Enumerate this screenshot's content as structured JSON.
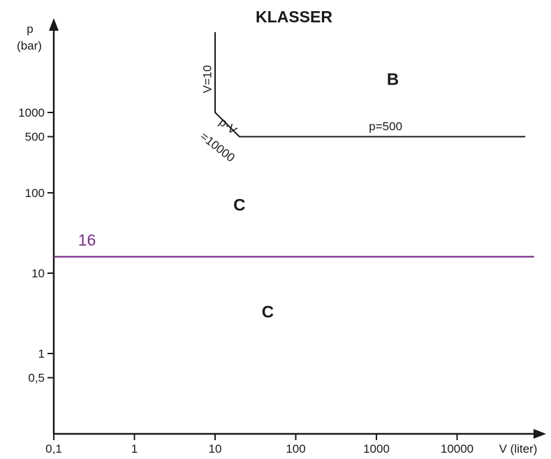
{
  "chart_data": {
    "type": "line",
    "title": "KLASSER",
    "xlabel": "V (liter)",
    "ylabel": [
      "p",
      "(bar)"
    ],
    "xscale": "log",
    "yscale": "log",
    "xlim": [
      0.1,
      90000
    ],
    "ylim": [
      0.1,
      40000
    ],
    "grid": false,
    "x_ticks": [
      {
        "value": 0.1,
        "label": "0,1"
      },
      {
        "value": 1,
        "label": "1"
      },
      {
        "value": 10,
        "label": "10"
      },
      {
        "value": 100,
        "label": "100"
      },
      {
        "value": 1000,
        "label": "1000"
      },
      {
        "value": 10000,
        "label": "10000"
      }
    ],
    "y_ticks": [
      {
        "value": 0.5,
        "label": "0,5"
      },
      {
        "value": 1,
        "label": "1"
      },
      {
        "value": 10,
        "label": "10"
      },
      {
        "value": 100,
        "label": "100"
      },
      {
        "value": 500,
        "label": "500"
      },
      {
        "value": 1000,
        "label": "1000"
      }
    ],
    "series": [
      {
        "color": "#1a1a1a",
        "points": [
          [
            10,
            10000
          ],
          [
            10,
            1000
          ],
          [
            20,
            500
          ],
          [
            70000,
            500
          ]
        ]
      },
      {
        "color": "#7b2d8e",
        "points": [
          [
            0.1,
            16
          ],
          [
            90000,
            16
          ]
        ]
      }
    ],
    "annotations": [
      {
        "text": "V=10",
        "x": 9,
        "y": 2600,
        "rotate": -90
      },
      {
        "text": "p=500",
        "x": 1300,
        "y": 600
      },
      {
        "text": "p·V",
        "x": 13.5,
        "y": 620,
        "rotate": 38
      },
      {
        "text": "=10000",
        "x": 10,
        "y": 340,
        "rotate": 38
      },
      {
        "text": "16",
        "x": 0.2,
        "y": 22,
        "color": "#7b2d8e"
      }
    ],
    "regions": [
      {
        "label": "B",
        "x": 1600,
        "y": 2200
      },
      {
        "label": "C",
        "x": 20,
        "y": 60
      },
      {
        "label": "C",
        "x": 45,
        "y": 2.8
      }
    ]
  }
}
